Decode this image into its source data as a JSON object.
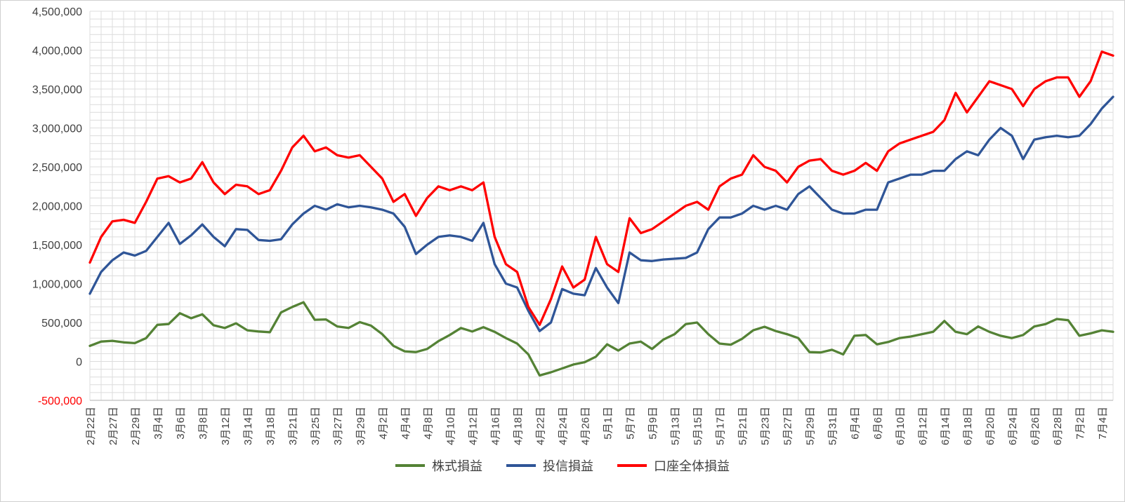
{
  "chart_data": {
    "type": "line",
    "title": "",
    "xlabel": "",
    "ylabel": "",
    "legend_position": "bottom",
    "grid": {
      "color": "#dcdcdc",
      "axis_color": "#bfbfbf"
    },
    "text_color": "#404040",
    "label_every": 2,
    "x_labels": [
      "2月22日",
      "2月27日",
      "2月29日",
      "3月4日",
      "3月6日",
      "3月8日",
      "3月12日",
      "3月14日",
      "3月18日",
      "3月21日",
      "3月25日",
      "3月27日",
      "3月29日",
      "4月2日",
      "4月4日",
      "4月8日",
      "4月10日",
      "4月12日",
      "4月16日",
      "4月18日",
      "4月22日",
      "4月24日",
      "4月26日",
      "5月1日",
      "5月7日",
      "5月9日",
      "5月13日",
      "5月15日",
      "5月17日",
      "5月21日",
      "5月23日",
      "5月27日",
      "5月29日",
      "5月31日",
      "6月4日",
      "6月6日",
      "6月10日",
      "6月12日",
      "6月14日",
      "6月18日",
      "6月20日",
      "6月24日",
      "6月26日",
      "6月28日",
      "7月2日",
      "7月4日"
    ],
    "y_axis": {
      "min": -500000,
      "max": 4500000,
      "major_step": 500000,
      "minor_step": 100000,
      "negative_color": "#ff0000",
      "tick_labels": [
        "4,500,000",
        "4,000,000",
        "3,500,000",
        "3,000,000",
        "2,500,000",
        "2,000,000",
        "1,500,000",
        "1,000,000",
        "500,000",
        "0",
        "-500,000"
      ]
    },
    "series": [
      {
        "name": "株式損益",
        "color": "#548235",
        "values": [
          200000,
          255000,
          265000,
          245000,
          235000,
          300000,
          470000,
          480000,
          620000,
          555000,
          605000,
          465000,
          430000,
          490000,
          400000,
          385000,
          375000,
          630000,
          700000,
          760000,
          535000,
          540000,
          450000,
          430000,
          505000,
          460000,
          350000,
          200000,
          130000,
          120000,
          160000,
          260000,
          340000,
          430000,
          385000,
          440000,
          380000,
          300000,
          230000,
          90000,
          -180000,
          -140000,
          -90000,
          -40000,
          -10000,
          60000,
          220000,
          140000,
          230000,
          255000,
          160000,
          280000,
          350000,
          480000,
          500000,
          350000,
          230000,
          215000,
          290000,
          400000,
          445000,
          390000,
          350000,
          300000,
          120000,
          115000,
          150000,
          90000,
          330000,
          340000,
          220000,
          250000,
          300000,
          320000,
          350000,
          380000,
          520000,
          380000,
          350000,
          450000,
          380000,
          330000,
          300000,
          340000,
          450000,
          480000,
          545000,
          530000,
          330000,
          360000,
          400000,
          380000
        ]
      },
      {
        "name": "投信損益",
        "color": "#2f5597",
        "values": [
          870000,
          1150000,
          1300000,
          1400000,
          1360000,
          1420000,
          1600000,
          1780000,
          1510000,
          1620000,
          1760000,
          1600000,
          1480000,
          1700000,
          1690000,
          1560000,
          1550000,
          1570000,
          1760000,
          1900000,
          2000000,
          1950000,
          2020000,
          1980000,
          2000000,
          1980000,
          1950000,
          1900000,
          1730000,
          1380000,
          1500000,
          1600000,
          1620000,
          1600000,
          1550000,
          1780000,
          1250000,
          1000000,
          950000,
          650000,
          390000,
          500000,
          930000,
          870000,
          850000,
          1200000,
          950000,
          750000,
          1400000,
          1300000,
          1290000,
          1310000,
          1320000,
          1330000,
          1400000,
          1700000,
          1850000,
          1850000,
          1900000,
          2000000,
          1950000,
          2000000,
          1950000,
          2150000,
          2250000,
          2100000,
          1950000,
          1900000,
          1900000,
          1950000,
          1950000,
          2300000,
          2350000,
          2400000,
          2400000,
          2450000,
          2450000,
          2600000,
          2700000,
          2650000,
          2850000,
          3000000,
          2900000,
          2600000,
          2850000,
          2880000,
          2900000,
          2880000,
          2900000,
          3050000,
          3250000,
          3400000
        ]
      },
      {
        "name": "口座全体損益",
        "color": "#ff0000",
        "values": [
          1270000,
          1600000,
          1800000,
          1820000,
          1780000,
          2050000,
          2350000,
          2380000,
          2300000,
          2350000,
          2560000,
          2300000,
          2150000,
          2270000,
          2250000,
          2150000,
          2200000,
          2450000,
          2750000,
          2900000,
          2700000,
          2750000,
          2650000,
          2620000,
          2650000,
          2500000,
          2350000,
          2050000,
          2150000,
          1870000,
          2100000,
          2250000,
          2200000,
          2250000,
          2200000,
          2300000,
          1600000,
          1250000,
          1150000,
          700000,
          470000,
          800000,
          1220000,
          950000,
          1050000,
          1600000,
          1250000,
          1150000,
          1840000,
          1650000,
          1700000,
          1800000,
          1900000,
          2000000,
          2050000,
          1950000,
          2250000,
          2350000,
          2400000,
          2650000,
          2500000,
          2450000,
          2300000,
          2500000,
          2580000,
          2600000,
          2450000,
          2400000,
          2450000,
          2550000,
          2450000,
          2700000,
          2800000,
          2850000,
          2900000,
          2950000,
          3100000,
          3450000,
          3200000,
          3400000,
          3600000,
          3550000,
          3500000,
          3280000,
          3500000,
          3600000,
          3650000,
          3650000,
          3400000,
          3600000,
          3980000,
          3930000
        ]
      }
    ]
  }
}
